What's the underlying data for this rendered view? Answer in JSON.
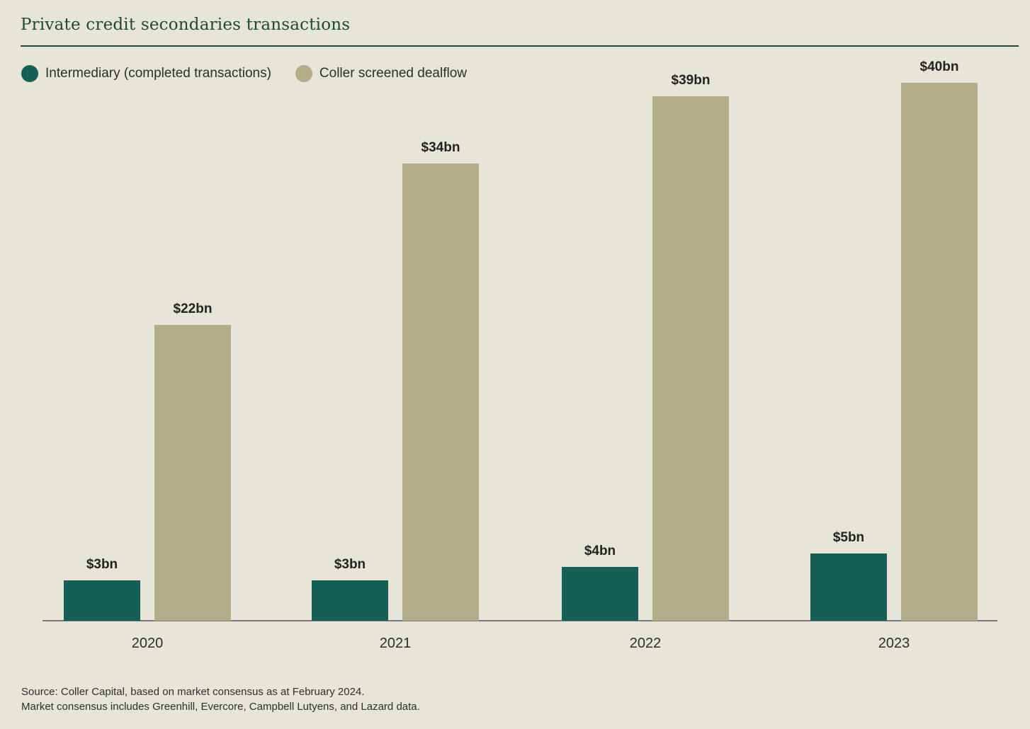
{
  "header": {
    "title": "Private credit secondaries transactions"
  },
  "colors": {
    "background": "#e7e4d8",
    "intermediary": "#155f55",
    "coller": "#b3ac89",
    "title": "#1b4a3c",
    "axis": "#555a57"
  },
  "chart_data": {
    "type": "bar",
    "title": "Private credit secondaries transactions",
    "categories": [
      "2020",
      "2021",
      "2022",
      "2023"
    ],
    "series": [
      {
        "name": "Intermediary (completed transactions)",
        "values": [
          3,
          3,
          4,
          5
        ],
        "labels": [
          "$3bn",
          "$3bn",
          "$4bn",
          "$5bn"
        ]
      },
      {
        "name": "Coller screened dealflow",
        "values": [
          22,
          34,
          39,
          40
        ],
        "labels": [
          "$22bn",
          "$34bn",
          "$39bn",
          "$40bn"
        ]
      }
    ],
    "ylim": [
      0,
      40
    ],
    "grid": false,
    "legend": "top-left",
    "xlabel": "",
    "ylabel": ""
  },
  "footer": {
    "source_line1": "Source: Coller Capital, based on market consensus as at February 2024.",
    "source_line2": "Market consensus includes Greenhill, Evercore, Campbell Lutyens, and Lazard data."
  }
}
